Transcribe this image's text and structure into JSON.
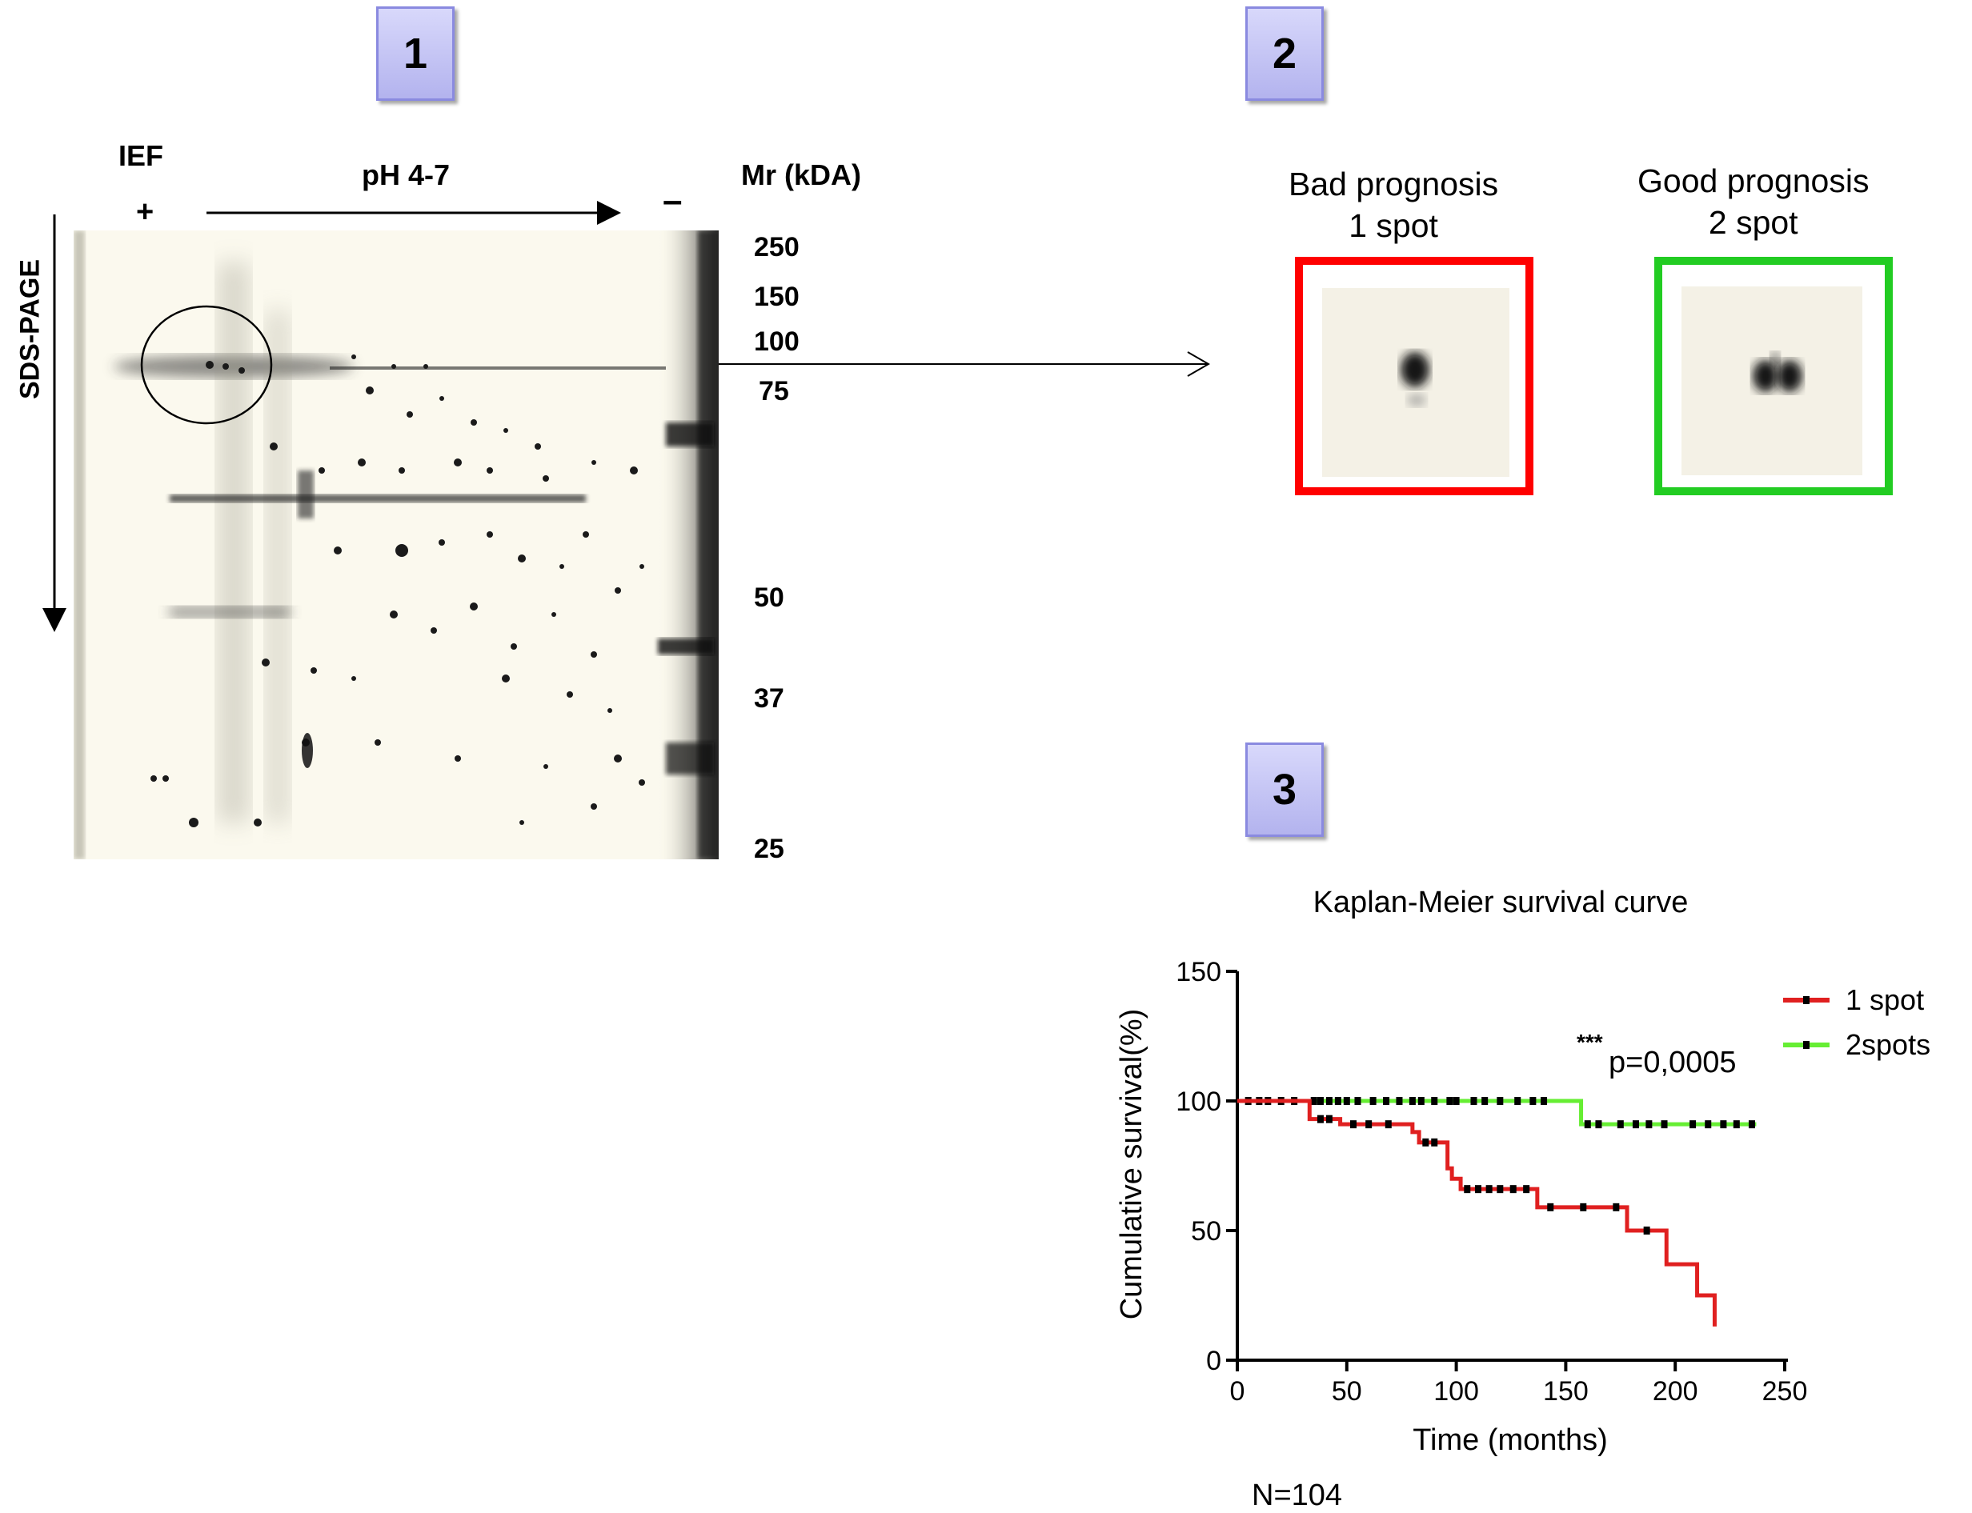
{
  "panels": {
    "p1": "1",
    "p2": "2",
    "p3": "3"
  },
  "gel": {
    "ief_label": "IEF",
    "plus": "+",
    "minus": "–",
    "ph_label": "pH 4-7",
    "mr_label": "Mr (kDA)",
    "sds_label": "SDS-PAGE",
    "mw_markers": [
      "250",
      "150",
      "100",
      "75",
      "50",
      "37",
      "25"
    ]
  },
  "spots": {
    "bad_title": "Bad prognosis",
    "bad_sub": "1 spot",
    "good_title": "Good prognosis",
    "good_sub": "2 spot",
    "bad_color": "#ff0000",
    "good_color": "#22cc22"
  },
  "chart_data": {
    "type": "line",
    "title": "Kaplan-Meier survival curve",
    "xlabel": "Time (months)",
    "ylabel": "Cumulative survival(%)",
    "xlim": [
      0,
      250
    ],
    "ylim": [
      0,
      150
    ],
    "xticks": [
      0,
      50,
      100,
      150,
      200,
      250
    ],
    "yticks": [
      0,
      50,
      100,
      150
    ],
    "annotation_stars": "***",
    "annotation": "p=0,0005",
    "footnote": "N=104",
    "legend_position": "top-right",
    "series": [
      {
        "name": "1 spot",
        "color": "#e02020",
        "steps": [
          [
            0,
            100
          ],
          [
            33,
            100
          ],
          [
            33,
            93
          ],
          [
            47,
            93
          ],
          [
            47,
            91
          ],
          [
            80,
            91
          ],
          [
            80,
            88
          ],
          [
            83,
            88
          ],
          [
            83,
            84
          ],
          [
            96,
            84
          ],
          [
            96,
            74
          ],
          [
            98,
            74
          ],
          [
            98,
            70
          ],
          [
            102,
            70
          ],
          [
            102,
            66
          ],
          [
            137,
            66
          ],
          [
            137,
            59
          ],
          [
            178,
            59
          ],
          [
            178,
            50
          ],
          [
            196,
            50
          ],
          [
            196,
            37
          ],
          [
            210,
            37
          ],
          [
            210,
            25
          ],
          [
            218,
            25
          ],
          [
            218,
            13
          ]
        ],
        "censored": [
          [
            38,
            93
          ],
          [
            42,
            93
          ],
          [
            53,
            91
          ],
          [
            60,
            91
          ],
          [
            69,
            91
          ],
          [
            86,
            84
          ],
          [
            90,
            84
          ],
          [
            105,
            66
          ],
          [
            110,
            66
          ],
          [
            115,
            66
          ],
          [
            120,
            66
          ],
          [
            126,
            66
          ],
          [
            132,
            66
          ],
          [
            143,
            59
          ],
          [
            158,
            59
          ],
          [
            173,
            59
          ],
          [
            187,
            50
          ]
        ]
      },
      {
        "name": "2spots",
        "color": "#66ee33",
        "steps": [
          [
            0,
            100
          ],
          [
            157,
            100
          ],
          [
            157,
            91
          ],
          [
            237,
            91
          ]
        ],
        "censored": [
          [
            5,
            100
          ],
          [
            10,
            100
          ],
          [
            14,
            100
          ],
          [
            20,
            100
          ],
          [
            26,
            100
          ],
          [
            35,
            100
          ],
          [
            38,
            100
          ],
          [
            42,
            100
          ],
          [
            46,
            100
          ],
          [
            50,
            100
          ],
          [
            55,
            100
          ],
          [
            62,
            100
          ],
          [
            68,
            100
          ],
          [
            74,
            100
          ],
          [
            80,
            100
          ],
          [
            84,
            100
          ],
          [
            90,
            100
          ],
          [
            97,
            100
          ],
          [
            100,
            100
          ],
          [
            108,
            100
          ],
          [
            113,
            100
          ],
          [
            120,
            100
          ],
          [
            128,
            100
          ],
          [
            135,
            100
          ],
          [
            140,
            100
          ],
          [
            160,
            91
          ],
          [
            165,
            91
          ],
          [
            175,
            91
          ],
          [
            182,
            91
          ],
          [
            188,
            91
          ],
          [
            195,
            91
          ],
          [
            208,
            91
          ],
          [
            215,
            91
          ],
          [
            222,
            91
          ],
          [
            228,
            91
          ],
          [
            235,
            91
          ]
        ]
      }
    ]
  }
}
